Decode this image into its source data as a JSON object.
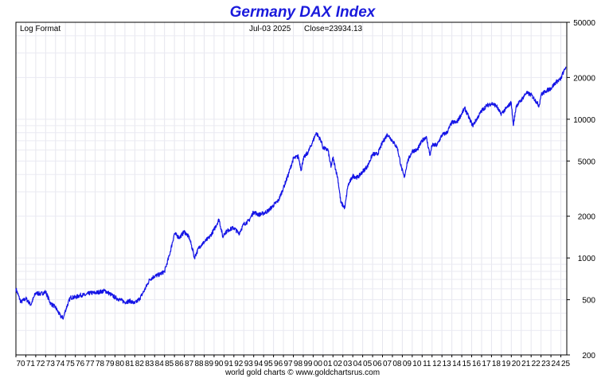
{
  "chart_data": {
    "type": "line",
    "title": "Germany DAX Index",
    "top_left_label": "Log Format",
    "date_label": "Jul-03  2025",
    "close_label": "Close=23934.13",
    "footer": "world gold charts © www.goldchartsrus.com",
    "y_scale": "log",
    "ylim": [
      200,
      50000
    ],
    "y_ticks": [
      50000,
      20000,
      10000,
      5000,
      2000,
      1000,
      500,
      200
    ],
    "y_tick_labels": [
      "50000",
      "20000",
      "10000",
      "5000",
      "2000",
      "1000",
      "500",
      "200"
    ],
    "xlim": [
      1970,
      2025.6
    ],
    "x_tick_labels": [
      "70",
      "71",
      "72",
      "73",
      "74",
      "75",
      "76",
      "77",
      "78",
      "79",
      "80",
      "81",
      "82",
      "83",
      "84",
      "85",
      "86",
      "87",
      "88",
      "89",
      "90",
      "91",
      "92",
      "93",
      "94",
      "95",
      "96",
      "97",
      "98",
      "99",
      "00",
      "01",
      "02",
      "03",
      "04",
      "05",
      "06",
      "07",
      "08",
      "09",
      "10",
      "11",
      "12",
      "13",
      "14",
      "15",
      "16",
      "17",
      "18",
      "19",
      "20",
      "21",
      "22",
      "23",
      "24",
      "25"
    ],
    "grid": true,
    "line_color": "#1414e6",
    "series": [
      {
        "x": [
          1970.0,
          1970.5,
          1971.0,
          1971.5,
          1972.0,
          1972.5,
          1973.0,
          1973.5,
          1974.0,
          1974.5,
          1974.8,
          1975.0,
          1975.5,
          1976.0,
          1976.5,
          1977.0,
          1977.5,
          1978.0,
          1978.5,
          1979.0,
          1979.5,
          1980.0,
          1980.5,
          1981.0,
          1981.5,
          1982.0,
          1982.5,
          1983.0,
          1983.5,
          1984.0,
          1984.5,
          1985.0,
          1985.5,
          1986.0,
          1986.5,
          1987.0,
          1987.5,
          1987.9,
          1988.0,
          1988.5,
          1989.0,
          1989.5,
          1990.0,
          1990.5,
          1990.9,
          1991.0,
          1991.5,
          1992.0,
          1992.5,
          1993.0,
          1993.5,
          1994.0,
          1994.5,
          1995.0,
          1995.5,
          1996.0,
          1996.5,
          1997.0,
          1997.5,
          1998.0,
          1998.5,
          1998.8,
          1999.0,
          1999.5,
          2000.0,
          2000.3,
          2000.8,
          2001.0,
          2001.5,
          2001.8,
          2002.0,
          2002.5,
          2002.8,
          2003.2,
          2003.5,
          2004.0,
          2004.5,
          2005.0,
          2005.5,
          2006.0,
          2006.5,
          2007.0,
          2007.5,
          2008.0,
          2008.5,
          2008.9,
          2009.2,
          2009.5,
          2010.0,
          2010.5,
          2011.0,
          2011.4,
          2011.8,
          2012.0,
          2012.5,
          2013.0,
          2013.5,
          2014.0,
          2014.5,
          2015.0,
          2015.3,
          2015.8,
          2016.1,
          2016.5,
          2017.0,
          2017.5,
          2018.0,
          2018.5,
          2018.9,
          2019.0,
          2019.5,
          2020.0,
          2020.2,
          2020.5,
          2021.0,
          2021.5,
          2022.0,
          2022.5,
          2022.8,
          2023.0,
          2023.5,
          2024.0,
          2024.5,
          2025.0,
          2025.2,
          2025.3,
          2025.5
        ],
        "values": [
          600,
          480,
          510,
          460,
          560,
          550,
          570,
          470,
          440,
          380,
          370,
          420,
          520,
          520,
          540,
          540,
          560,
          560,
          570,
          580,
          550,
          520,
          500,
          480,
          490,
          470,
          510,
          590,
          700,
          740,
          760,
          800,
          1050,
          1500,
          1400,
          1550,
          1400,
          1100,
          1000,
          1200,
          1300,
          1400,
          1600,
          1900,
          1400,
          1500,
          1600,
          1650,
          1500,
          1750,
          1850,
          2150,
          2050,
          2100,
          2200,
          2400,
          2600,
          3200,
          4000,
          5200,
          5400,
          4300,
          5200,
          5800,
          7000,
          8000,
          7000,
          6200,
          6000,
          4500,
          5300,
          3700,
          2500,
          2300,
          3300,
          3900,
          3800,
          4200,
          4600,
          5600,
          5600,
          6800,
          7800,
          7000,
          6200,
          4500,
          3800,
          4900,
          5900,
          6000,
          7000,
          7500,
          5500,
          6500,
          6500,
          7700,
          8000,
          9500,
          9500,
          11000,
          12000,
          10000,
          9000,
          10000,
          11500,
          12500,
          13000,
          12500,
          11000,
          11000,
          12000,
          13200,
          9000,
          12500,
          13700,
          15500,
          15000,
          13500,
          12500,
          15000,
          16000,
          16700,
          18500,
          19500,
          21500,
          22000,
          23934
        ]
      }
    ]
  }
}
